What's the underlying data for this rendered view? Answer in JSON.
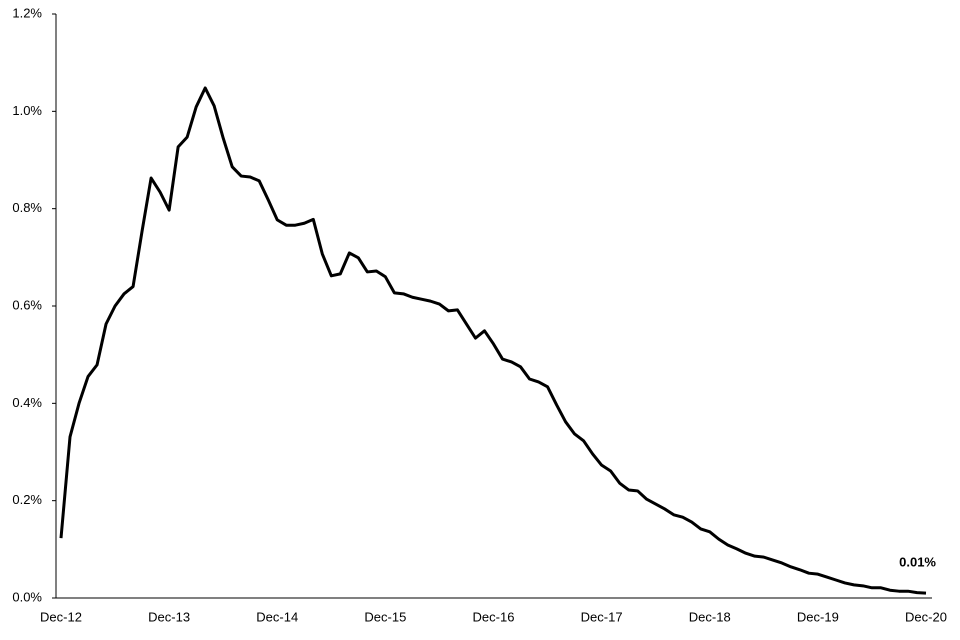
{
  "chart_data": {
    "type": "line",
    "categories": [
      "Dec-12",
      null,
      null,
      null,
      null,
      null,
      null,
      null,
      null,
      null,
      null,
      null,
      "Dec-13",
      null,
      null,
      null,
      null,
      null,
      null,
      null,
      null,
      null,
      null,
      null,
      "Dec-14",
      null,
      null,
      null,
      null,
      null,
      null,
      null,
      null,
      null,
      null,
      null,
      "Dec-15",
      null,
      null,
      null,
      null,
      null,
      null,
      null,
      null,
      null,
      null,
      null,
      "Dec-16",
      null,
      null,
      null,
      null,
      null,
      null,
      null,
      null,
      null,
      null,
      null,
      "Dec-17",
      null,
      null,
      null,
      null,
      null,
      null,
      null,
      null,
      null,
      null,
      null,
      "Dec-18",
      null,
      null,
      null,
      null,
      null,
      null,
      null,
      null,
      null,
      null,
      null,
      "Dec-19",
      null,
      null,
      null,
      null,
      null,
      null,
      null,
      null,
      null,
      null,
      null,
      "Dec-20"
    ],
    "values": [
      0.123,
      0.331,
      0.4,
      0.455,
      0.479,
      0.563,
      0.6,
      0.625,
      0.64,
      0.754,
      0.863,
      0.834,
      0.797,
      0.927,
      0.947,
      1.009,
      1.048,
      1.011,
      0.945,
      0.886,
      0.867,
      0.865,
      0.857,
      0.818,
      0.777,
      0.766,
      0.766,
      0.77,
      0.778,
      0.707,
      0.662,
      0.666,
      0.709,
      0.699,
      0.67,
      0.672,
      0.66,
      0.627,
      0.625,
      0.618,
      0.614,
      0.61,
      0.604,
      0.59,
      0.592,
      0.563,
      0.534,
      0.549,
      0.522,
      0.491,
      0.485,
      0.475,
      0.45,
      0.444,
      0.434,
      0.397,
      0.362,
      0.337,
      0.323,
      0.296,
      0.273,
      0.261,
      0.236,
      0.222,
      0.22,
      0.203,
      0.193,
      0.183,
      0.171,
      0.166,
      0.156,
      0.142,
      0.136,
      0.121,
      0.109,
      0.101,
      0.092,
      0.086,
      0.084,
      0.078,
      0.072,
      0.064,
      0.058,
      0.051,
      0.049,
      0.043,
      0.037,
      0.031,
      0.027,
      0.025,
      0.021,
      0.021,
      0.016,
      0.014,
      0.014,
      0.011,
      0.01
    ],
    "value_labels": [
      null,
      null,
      null,
      null,
      null,
      null,
      null,
      null,
      null,
      null,
      null,
      null,
      null,
      null,
      null,
      null,
      null,
      null,
      null,
      null,
      null,
      null,
      null,
      null,
      null,
      null,
      null,
      null,
      null,
      null,
      null,
      null,
      null,
      null,
      null,
      null,
      null,
      null,
      null,
      null,
      null,
      null,
      null,
      null,
      null,
      null,
      null,
      null,
      null,
      null,
      null,
      null,
      null,
      null,
      null,
      null,
      null,
      null,
      null,
      null,
      null,
      null,
      null,
      null,
      null,
      null,
      null,
      null,
      null,
      null,
      null,
      null,
      null,
      null,
      null,
      null,
      null,
      null,
      null,
      null,
      null,
      null,
      null,
      null,
      null,
      null,
      null,
      null,
      null,
      null,
      null,
      null,
      null,
      null,
      null,
      null,
      "0.01%"
    ],
    "color": "#000000",
    "ylim": [
      0,
      1.2
    ],
    "yticks": [
      {
        "value": 0,
        "label": "0.0%"
      },
      {
        "value": 0.2,
        "label": "0.2%"
      },
      {
        "value": 0.4,
        "label": "0.4%"
      },
      {
        "value": 0.6,
        "label": "0.6%"
      },
      {
        "value": 0.8,
        "label": "0.8%"
      },
      {
        "value": 1.0,
        "label": "1.0%"
      },
      {
        "value": 1.2,
        "label": "1.2%"
      }
    ],
    "grid": false
  }
}
